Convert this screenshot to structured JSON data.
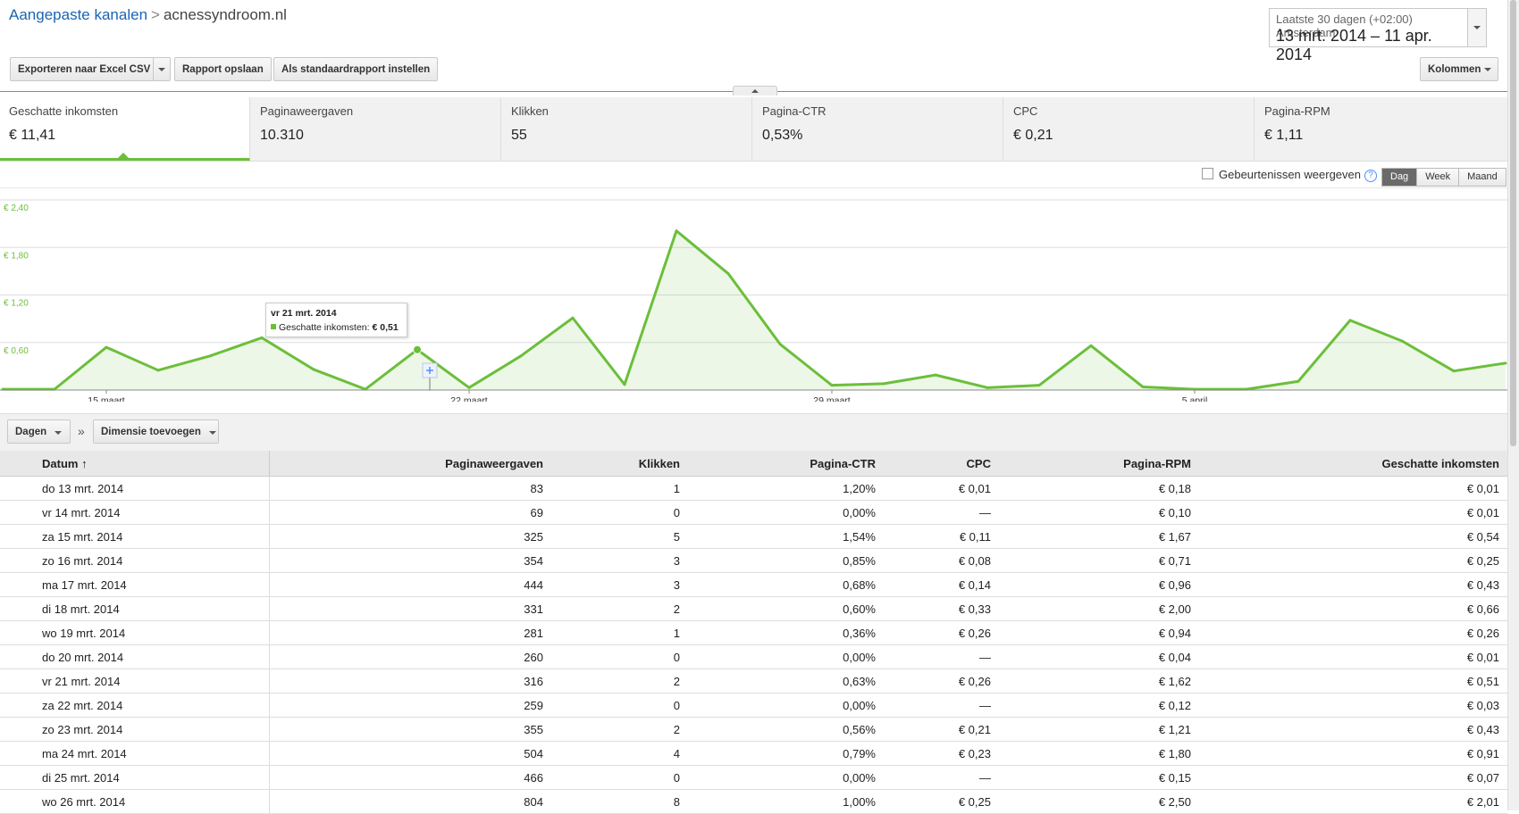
{
  "breadcrumb": {
    "parent": "Aangepaste kanalen",
    "separator": ">",
    "current": "acnessyndroom.nl"
  },
  "date_range": {
    "label": "Laatste 30 dagen (+02:00) Amsterdam",
    "range": "13 mrt. 2014 – 11 apr. 2014"
  },
  "toolbar": {
    "export_label": "Exporteren naar Excel CSV",
    "save_label": "Rapport opslaan",
    "default_label": "Als standaardrapport instellen",
    "columns_label": "Kolommen"
  },
  "metrics": [
    {
      "label": "Geschatte inkomsten",
      "value": "€ 11,41"
    },
    {
      "label": "Paginaweergaven",
      "value": "10.310"
    },
    {
      "label": "Klikken",
      "value": "55"
    },
    {
      "label": "Pagina-CTR",
      "value": "0,53%"
    },
    {
      "label": "CPC",
      "value": "€ 0,21"
    },
    {
      "label": "Pagina-RPM",
      "value": "€ 1,11"
    }
  ],
  "chart_controls": {
    "events_label": "Gebeurtenissen weergeven",
    "help": "?",
    "granularity": [
      "Dag",
      "Week",
      "Maand"
    ],
    "selected_granularity": "Dag"
  },
  "chart_data": {
    "type": "area",
    "series": [
      {
        "name": "Geschatte inkomsten",
        "color": "#6bbf3a",
        "values": [
          0.01,
          0.01,
          0.54,
          0.25,
          0.43,
          0.66,
          0.26,
          0.01,
          0.51,
          0.03,
          0.43,
          0.91,
          0.07,
          2.01,
          1.47,
          0.58,
          0.06,
          0.08,
          0.19,
          0.03,
          0.06,
          0.56,
          0.04,
          0.01,
          0.01,
          0.11,
          0.88,
          0.62,
          0.24,
          0.34
        ]
      }
    ],
    "ylim": [
      0,
      2.4
    ],
    "y_ticks": [
      "€ 0,60",
      "€ 1,20",
      "€ 1,80",
      "€ 2,40"
    ],
    "x_ticks": [
      {
        "label": "15 maart",
        "index": 2
      },
      {
        "label": "22 maart",
        "index": 9
      },
      {
        "label": "29 maart",
        "index": 16
      },
      {
        "label": "5 april",
        "index": 23
      }
    ],
    "grid": true,
    "highlight_index": 8
  },
  "tooltip": {
    "date": "vr 21 mrt. 2014",
    "series": "Geschatte inkomsten:",
    "value": "€ 0,51"
  },
  "dimension_bar": {
    "days_label": "Dagen",
    "separator": "»",
    "add_dimension_label": "Dimensie toevoegen"
  },
  "table": {
    "headers": [
      "Datum",
      "Paginaweergaven",
      "Klikken",
      "Pagina-CTR",
      "CPC",
      "Pagina-RPM",
      "Geschatte inkomsten"
    ],
    "sort_indicator": "↑",
    "rows": [
      [
        "do 13 mrt. 2014",
        "83",
        "1",
        "1,20%",
        "€ 0,01",
        "€ 0,18",
        "€ 0,01"
      ],
      [
        "vr 14 mrt. 2014",
        "69",
        "0",
        "0,00%",
        "—",
        "€ 0,10",
        "€ 0,01"
      ],
      [
        "za 15 mrt. 2014",
        "325",
        "5",
        "1,54%",
        "€ 0,11",
        "€ 1,67",
        "€ 0,54"
      ],
      [
        "zo 16 mrt. 2014",
        "354",
        "3",
        "0,85%",
        "€ 0,08",
        "€ 0,71",
        "€ 0,25"
      ],
      [
        "ma 17 mrt. 2014",
        "444",
        "3",
        "0,68%",
        "€ 0,14",
        "€ 0,96",
        "€ 0,43"
      ],
      [
        "di 18 mrt. 2014",
        "331",
        "2",
        "0,60%",
        "€ 0,33",
        "€ 2,00",
        "€ 0,66"
      ],
      [
        "wo 19 mrt. 2014",
        "281",
        "1",
        "0,36%",
        "€ 0,26",
        "€ 0,94",
        "€ 0,26"
      ],
      [
        "do 20 mrt. 2014",
        "260",
        "0",
        "0,00%",
        "—",
        "€ 0,04",
        "€ 0,01"
      ],
      [
        "vr 21 mrt. 2014",
        "316",
        "2",
        "0,63%",
        "€ 0,26",
        "€ 1,62",
        "€ 0,51"
      ],
      [
        "za 22 mrt. 2014",
        "259",
        "0",
        "0,00%",
        "—",
        "€ 0,12",
        "€ 0,03"
      ],
      [
        "zo 23 mrt. 2014",
        "355",
        "2",
        "0,56%",
        "€ 0,21",
        "€ 1,21",
        "€ 0,43"
      ],
      [
        "ma 24 mrt. 2014",
        "504",
        "4",
        "0,79%",
        "€ 0,23",
        "€ 1,80",
        "€ 0,91"
      ],
      [
        "di 25 mrt. 2014",
        "466",
        "0",
        "0,00%",
        "—",
        "€ 0,15",
        "€ 0,07"
      ],
      [
        "wo 26 mrt. 2014",
        "804",
        "8",
        "1,00%",
        "€ 0,25",
        "€ 2,50",
        "€ 2,01"
      ]
    ]
  }
}
